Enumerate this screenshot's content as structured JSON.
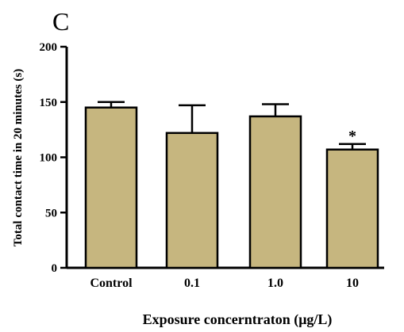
{
  "chart_data": {
    "type": "bar",
    "panel_label": "C",
    "categories": [
      "Control",
      "0.1",
      "1.0",
      "10"
    ],
    "values": [
      145,
      122,
      137,
      107
    ],
    "error": [
      5,
      25,
      11,
      5
    ],
    "annotations": [
      "",
      "",
      "",
      "*"
    ],
    "xlabel": "Exposure concerntraton (μg/L)",
    "ylabel": "Total contact time in 20 minutes (s)",
    "ylim": [
      0,
      200
    ],
    "yticks": [
      0,
      50,
      100,
      150,
      200
    ],
    "grid": false,
    "colors": {
      "bar_fill": "#c6b67f",
      "outline": "#000000"
    }
  }
}
